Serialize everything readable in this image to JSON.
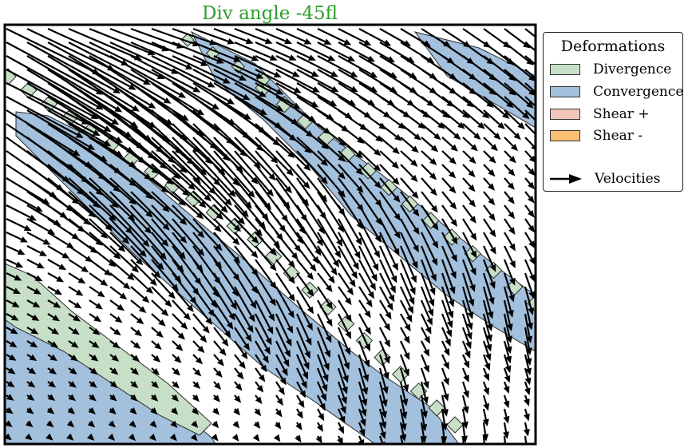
{
  "chart_data": {
    "type": "quiver",
    "title": "Div angle -45fl",
    "title_color": "#2ca02c",
    "legend": {
      "title": "Deformations",
      "placement": "outside-right-top",
      "entries": [
        {
          "label": "Divergence",
          "color": "#c6dfc6"
        },
        {
          "label": "Convergence",
          "color": "#a3c0dd"
        },
        {
          "label": "Shear +",
          "color": "#f3c6bc"
        },
        {
          "label": "Shear -",
          "color": "#fbbf72"
        }
      ],
      "arrow_label": "Velocities"
    },
    "colors": {
      "divergence": "#c6dfc6",
      "convergence": "#a3c0dd",
      "shear_pos": "#f3c6bc",
      "shear_neg": "#fbbf72",
      "arrows": "#000000"
    },
    "axes": {
      "ticks_visible": false,
      "grid": false
    }
  }
}
